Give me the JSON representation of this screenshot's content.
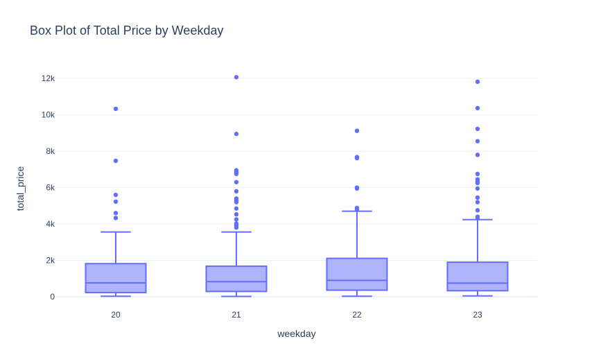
{
  "chart_data": {
    "type": "box",
    "title": "Box Plot of Total Price by Weekday",
    "xlabel": "weekday",
    "ylabel": "total_price",
    "ylim": [
      0,
      12500
    ],
    "ytick_values": [
      0,
      2000,
      4000,
      6000,
      8000,
      10000,
      12000
    ],
    "ytick_labels": [
      "0",
      "2k",
      "4k",
      "6k",
      "8k",
      "10k",
      "12k"
    ],
    "grid": true,
    "color": "#636efa",
    "fill": "#aeb3fc",
    "categories": [
      "20",
      "21",
      "22",
      "23"
    ],
    "boxes": [
      {
        "category": "20",
        "min": 30,
        "q1": 230,
        "median": 760,
        "q3": 1820,
        "max": 3560,
        "outliers": [
          4330,
          4600,
          5230,
          5600,
          7470,
          10330
        ]
      },
      {
        "category": "21",
        "min": 20,
        "q1": 290,
        "median": 830,
        "q3": 1680,
        "max": 3560,
        "outliers": [
          3800,
          3880,
          3960,
          4020,
          4250,
          4530,
          4850,
          5200,
          5300,
          5400,
          5800,
          6300,
          6750,
          6850,
          6950,
          8950,
          12070
        ]
      },
      {
        "category": "22",
        "min": 30,
        "q1": 360,
        "median": 900,
        "q3": 2110,
        "max": 4700,
        "outliers": [
          4800,
          4880,
          5950,
          6000,
          7620,
          7680,
          9120
        ]
      },
      {
        "category": "23",
        "min": 50,
        "q1": 330,
        "median": 750,
        "q3": 1900,
        "max": 4240,
        "outliers": [
          4330,
          4400,
          4750,
          5200,
          5450,
          5950,
          6250,
          6350,
          6450,
          6750,
          7800,
          8550,
          9230,
          10370,
          11820
        ]
      }
    ]
  }
}
